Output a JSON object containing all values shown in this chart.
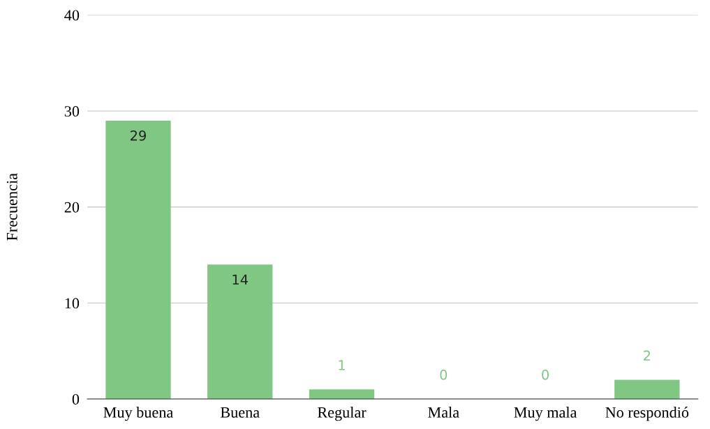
{
  "chart_data": {
    "type": "bar",
    "ylabel": "Frecuencia",
    "categories": [
      "Muy buena",
      "Buena",
      "Regular",
      "Mala",
      "Muy mala",
      "No respondió"
    ],
    "values": [
      29,
      14,
      1,
      0,
      0,
      2
    ],
    "color": "#81c784",
    "ylim": [
      0,
      40
    ],
    "yticks": [
      0,
      10,
      20,
      30,
      40
    ],
    "grid": "y",
    "data_labels": true
  }
}
